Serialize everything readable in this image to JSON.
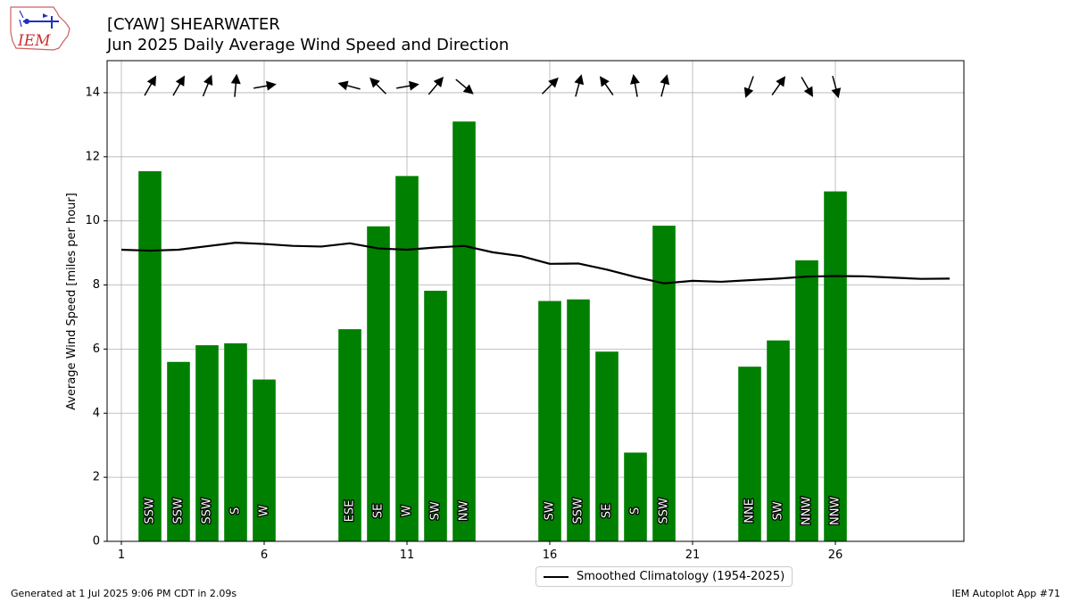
{
  "header": {
    "title_line1": "[CYAW] SHEARWATER",
    "title_line2": "Jun 2025 Daily Average Wind Speed and Direction"
  },
  "logo": {
    "text": "IEM"
  },
  "footer": {
    "left": "Generated at 1 Jul 2025 9:06 PM CDT in 2.09s",
    "right": "IEM Autoplot App #71"
  },
  "colors": {
    "bar": "#008000",
    "climatology": "#000000",
    "grid": "#b0b0b0"
  },
  "chart_data": {
    "type": "bar",
    "ylabel": "Average Wind Speed [miles per hour]",
    "xlabel": "",
    "xlim": [
      0.5,
      30.5
    ],
    "ylim": [
      0,
      15
    ],
    "xticks": [
      1,
      6,
      11,
      16,
      21,
      26
    ],
    "yticks": [
      0,
      2,
      4,
      6,
      8,
      10,
      12,
      14
    ],
    "grid": true,
    "bars": [
      {
        "day": 2,
        "value": 11.55,
        "dir": "SSW",
        "arrow_deg": 30
      },
      {
        "day": 3,
        "value": 5.6,
        "dir": "SSW",
        "arrow_deg": 30
      },
      {
        "day": 4,
        "value": 6.12,
        "dir": "SSW",
        "arrow_deg": 22
      },
      {
        "day": 5,
        "value": 6.18,
        "dir": "S",
        "arrow_deg": 5
      },
      {
        "day": 6,
        "value": 5.05,
        "dir": "W",
        "arrow_deg": 80
      },
      {
        "day": 9,
        "value": 6.62,
        "dir": "ESE",
        "arrow_deg": 285
      },
      {
        "day": 10,
        "value": 9.83,
        "dir": "SE",
        "arrow_deg": 315
      },
      {
        "day": 11,
        "value": 11.4,
        "dir": "W",
        "arrow_deg": 80
      },
      {
        "day": 12,
        "value": 7.82,
        "dir": "SW",
        "arrow_deg": 40
      },
      {
        "day": 13,
        "value": 13.1,
        "dir": "NW",
        "arrow_deg": 130
      },
      {
        "day": 16,
        "value": 7.5,
        "dir": "SW",
        "arrow_deg": 45
      },
      {
        "day": 17,
        "value": 7.55,
        "dir": "SSW",
        "arrow_deg": 15
      },
      {
        "day": 18,
        "value": 5.92,
        "dir": "SE",
        "arrow_deg": 325
      },
      {
        "day": 19,
        "value": 2.77,
        "dir": "S",
        "arrow_deg": 350
      },
      {
        "day": 20,
        "value": 9.85,
        "dir": "SSW",
        "arrow_deg": 15
      },
      {
        "day": 23,
        "value": 5.45,
        "dir": "NNE",
        "arrow_deg": 200
      },
      {
        "day": 24,
        "value": 6.27,
        "dir": "SW",
        "arrow_deg": 35
      },
      {
        "day": 25,
        "value": 8.77,
        "dir": "NNW",
        "arrow_deg": 150
      },
      {
        "day": 26,
        "value": 10.92,
        "dir": "NNW",
        "arrow_deg": 165
      }
    ],
    "arrow_y": 14.2,
    "series": [
      {
        "name": "Smoothed Climatology (1954-2025)",
        "type": "line",
        "x": [
          1,
          2,
          3,
          4,
          5,
          6,
          7,
          8,
          9,
          10,
          11,
          12,
          13,
          14,
          15,
          16,
          17,
          18,
          19,
          20,
          21,
          22,
          23,
          24,
          25,
          26,
          27,
          28,
          29,
          30
        ],
        "values": [
          9.1,
          9.07,
          9.1,
          9.21,
          9.32,
          9.28,
          9.22,
          9.2,
          9.3,
          9.14,
          9.1,
          9.17,
          9.22,
          9.02,
          8.9,
          8.66,
          8.67,
          8.48,
          8.25,
          8.05,
          8.13,
          8.1,
          8.15,
          8.2,
          8.26,
          8.28,
          8.27,
          8.23,
          8.19,
          8.2
        ]
      }
    ]
  }
}
